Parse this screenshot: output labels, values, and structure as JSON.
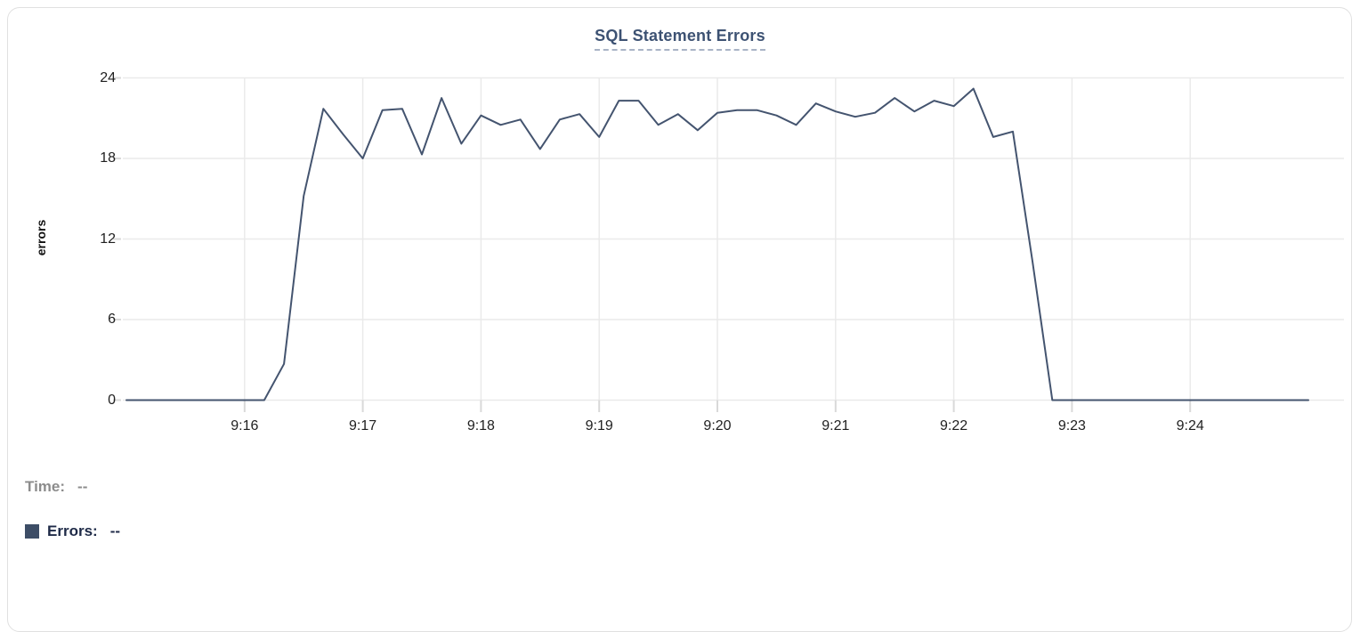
{
  "title": {
    "text": "SQL Statement Errors"
  },
  "chart_data": {
    "type": "line",
    "title": "SQL Statement Errors",
    "xlabel": "",
    "ylabel": "errors",
    "ylim": [
      0,
      24
    ],
    "y_ticks": [
      0,
      6,
      12,
      18,
      24
    ],
    "x_ticks": [
      "9:16",
      "9:17",
      "9:18",
      "9:19",
      "9:20",
      "9:21",
      "9:22",
      "9:23",
      "9:24"
    ],
    "x_start": "9:15:00",
    "x_end": "9:25:00",
    "sample_interval_seconds": 10,
    "grid": true,
    "legend_position": "bottom-left",
    "series": [
      {
        "name": "Errors",
        "color": "#44546f",
        "values": [
          0,
          0,
          0,
          0,
          0,
          0,
          0,
          0,
          2.7,
          15.2,
          21.7,
          19.8,
          18,
          21.6,
          21.7,
          18.3,
          22.5,
          19.1,
          21.2,
          20.5,
          20.9,
          18.7,
          20.9,
          21.3,
          19.6,
          22.3,
          22.3,
          20.5,
          21.3,
          20.1,
          21.4,
          21.6,
          21.6,
          21.2,
          20.5,
          22.1,
          21.5,
          21.1,
          21.4,
          22.5,
          21.5,
          22.3,
          21.9,
          23.2,
          19.6,
          20,
          10.3,
          0,
          0,
          0,
          0,
          0,
          0,
          0,
          0,
          0,
          0,
          0,
          0,
          0,
          0
        ]
      }
    ]
  },
  "legend": {
    "time_label": "Time:",
    "time_value": "--",
    "errors_label": "Errors:",
    "errors_value": "--",
    "swatch_color": "#3d4d66"
  },
  "colors": {
    "title_text": "#3d5273",
    "title_underline": "#a9b3c6",
    "grid": "#eaeaea",
    "tick": "#d9d9d9",
    "axis_text": "#1f1f1f",
    "line": "#44546f",
    "time_text": "#8c8c8c",
    "errors_text": "#1e2a47",
    "card_border": "#e0e0e0",
    "background": "#ffffff"
  }
}
